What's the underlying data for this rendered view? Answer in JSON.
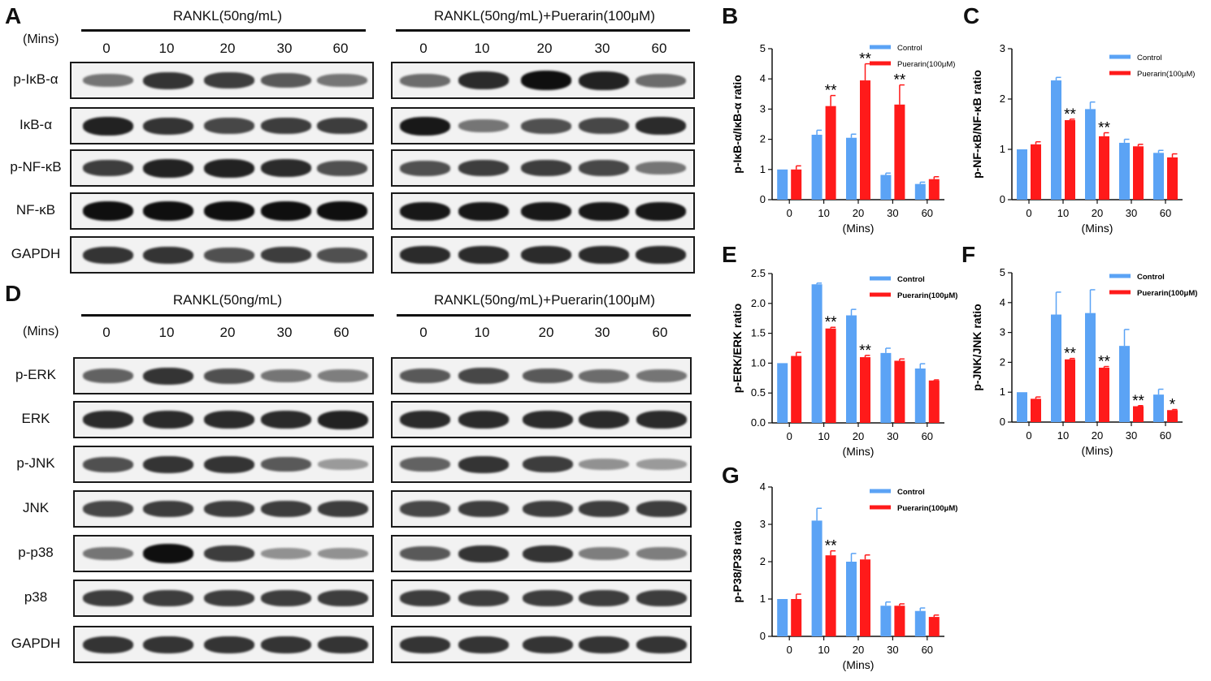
{
  "panels": {
    "A": "A",
    "B": "B",
    "C": "C",
    "D": "D",
    "E": "E",
    "F": "F",
    "G": "G"
  },
  "blots": {
    "conditions": [
      "RANKL(50ng/mL)",
      "RANKL(50ng/mL)+Puerarin(100μM)"
    ],
    "mins_label": "(Mins)",
    "lanes": [
      "0",
      "10",
      "20",
      "30",
      "60"
    ],
    "block_A": {
      "rows": [
        "p-IκB-α",
        "IκB-α",
        "p-NF-κB",
        "NF-κB",
        "GAPDH"
      ],
      "intensity_left": [
        [
          0.45,
          0.8,
          0.75,
          0.6,
          0.45
        ],
        [
          0.9,
          0.8,
          0.7,
          0.75,
          0.75
        ],
        [
          0.75,
          0.9,
          0.9,
          0.85,
          0.65
        ],
        [
          1,
          1,
          1,
          1,
          1
        ],
        [
          0.8,
          0.8,
          0.65,
          0.75,
          0.65
        ]
      ],
      "intensity_right": [
        [
          0.5,
          0.85,
          1,
          0.9,
          0.5
        ],
        [
          0.95,
          0.45,
          0.65,
          0.7,
          0.85
        ],
        [
          0.65,
          0.75,
          0.75,
          0.7,
          0.45
        ],
        [
          0.95,
          0.95,
          0.95,
          0.95,
          0.95
        ],
        [
          0.85,
          0.85,
          0.85,
          0.85,
          0.85
        ]
      ]
    },
    "block_D": {
      "rows": [
        "p-ERK",
        "ERK",
        "p-JNK",
        "JNK",
        "p-p38",
        "p38",
        "GAPDH"
      ],
      "intensity_left": [
        [
          0.55,
          0.8,
          0.65,
          0.45,
          0.4
        ],
        [
          0.85,
          0.85,
          0.85,
          0.85,
          0.9
        ],
        [
          0.65,
          0.8,
          0.8,
          0.6,
          0.25
        ],
        [
          0.7,
          0.75,
          0.75,
          0.75,
          0.75
        ],
        [
          0.45,
          1,
          0.75,
          0.3,
          0.3
        ],
        [
          0.75,
          0.75,
          0.75,
          0.75,
          0.75
        ],
        [
          0.8,
          0.8,
          0.8,
          0.8,
          0.8
        ]
      ],
      "intensity_right": [
        [
          0.6,
          0.7,
          0.6,
          0.5,
          0.45
        ],
        [
          0.85,
          0.85,
          0.85,
          0.85,
          0.85
        ],
        [
          0.55,
          0.8,
          0.75,
          0.3,
          0.25
        ],
        [
          0.7,
          0.75,
          0.75,
          0.75,
          0.75
        ],
        [
          0.6,
          0.8,
          0.8,
          0.4,
          0.4
        ],
        [
          0.75,
          0.75,
          0.75,
          0.75,
          0.75
        ],
        [
          0.8,
          0.8,
          0.8,
          0.8,
          0.8
        ]
      ]
    }
  },
  "colors": {
    "control": "#5ba3f5",
    "puerarin": "#ff1a1a"
  },
  "chart_data": [
    {
      "id": "B",
      "type": "bar",
      "categories": [
        "0",
        "10",
        "20",
        "30",
        "60"
      ],
      "series": [
        {
          "name": "Control",
          "values": [
            1.0,
            2.15,
            2.05,
            0.82,
            0.52
          ],
          "errors": [
            0.0,
            0.15,
            0.12,
            0.06,
            0.06
          ]
        },
        {
          "name": "Puerarin(100μM)",
          "values": [
            1.0,
            3.1,
            3.95,
            3.15,
            0.68
          ],
          "errors": [
            0.12,
            0.35,
            0.55,
            0.65,
            0.08
          ]
        }
      ],
      "significance": [
        "",
        "**",
        "**",
        "**",
        ""
      ],
      "xlabel": "(Mins)",
      "ylabel": "p-IκB-α/IκB-α ratio",
      "ylim": [
        0,
        5
      ],
      "yticks": [
        "0",
        "1",
        "2",
        "3",
        "4",
        "5"
      ],
      "grid": false,
      "legend": "top-right"
    },
    {
      "id": "C",
      "type": "bar",
      "categories": [
        "0",
        "10",
        "20",
        "30",
        "60"
      ],
      "series": [
        {
          "name": "Control",
          "values": [
            1.0,
            2.37,
            1.8,
            1.13,
            0.93
          ],
          "errors": [
            0.0,
            0.06,
            0.14,
            0.07,
            0.05
          ]
        },
        {
          "name": "Puerarin(100μM)",
          "values": [
            1.1,
            1.58,
            1.26,
            1.06,
            0.84
          ],
          "errors": [
            0.05,
            0.02,
            0.07,
            0.04,
            0.07
          ]
        }
      ],
      "significance": [
        "",
        "**",
        "**",
        "",
        ""
      ],
      "xlabel": "(Mins)",
      "ylabel": "p-NF-κB/NF-κB ratio",
      "ylim": [
        0,
        3
      ],
      "yticks": [
        "0",
        "1",
        "2",
        "3"
      ],
      "grid": false,
      "legend": "top-right"
    },
    {
      "id": "E",
      "type": "bar",
      "categories": [
        "0",
        "10",
        "20",
        "30",
        "60"
      ],
      "series": [
        {
          "name": "Control",
          "values": [
            1.0,
            2.32,
            1.8,
            1.17,
            0.91
          ],
          "errors": [
            0.0,
            0.02,
            0.1,
            0.08,
            0.08
          ]
        },
        {
          "name": "Puerarin(100μM)",
          "values": [
            1.12,
            1.58,
            1.1,
            1.04,
            0.71
          ],
          "errors": [
            0.06,
            0.02,
            0.03,
            0.03,
            0.01
          ]
        }
      ],
      "significance": [
        "",
        "**",
        "**",
        "",
        ""
      ],
      "xlabel": "(Mins)",
      "ylabel": "p-ERK/ERK ratio",
      "ylim": [
        0,
        2.5
      ],
      "yticks": [
        "0.0",
        "0.5",
        "1.0",
        "1.5",
        "2.0",
        "2.5"
      ],
      "grid": false,
      "legend": "top-right"
    },
    {
      "id": "F",
      "type": "bar",
      "categories": [
        "0",
        "10",
        "20",
        "30",
        "60"
      ],
      "series": [
        {
          "name": "Control",
          "values": [
            1.0,
            3.6,
            3.65,
            2.55,
            0.92
          ],
          "errors": [
            0.0,
            0.75,
            0.78,
            0.55,
            0.18
          ]
        },
        {
          "name": "Puerarin(100μM)",
          "values": [
            0.78,
            2.1,
            1.82,
            0.53,
            0.4
          ],
          "errors": [
            0.06,
            0.03,
            0.04,
            0.02,
            0.02
          ]
        }
      ],
      "significance": [
        "",
        "**",
        "**",
        "**",
        "*"
      ],
      "xlabel": "(Mins)",
      "ylabel": "p-JNK/JNK ratio",
      "ylim": [
        0,
        5
      ],
      "yticks": [
        "0",
        "1",
        "2",
        "3",
        "4",
        "5"
      ],
      "grid": false,
      "legend": "top-right"
    },
    {
      "id": "G",
      "type": "bar",
      "categories": [
        "0",
        "10",
        "20",
        "30",
        "60"
      ],
      "series": [
        {
          "name": "Control",
          "values": [
            1.0,
            3.1,
            2.0,
            0.82,
            0.68
          ],
          "errors": [
            0.0,
            0.33,
            0.22,
            0.1,
            0.08
          ]
        },
        {
          "name": "Puerarin(100μM)",
          "values": [
            1.0,
            2.17,
            2.06,
            0.82,
            0.52
          ],
          "errors": [
            0.13,
            0.12,
            0.12,
            0.05,
            0.05
          ]
        }
      ],
      "significance": [
        "",
        "**",
        "",
        "",
        ""
      ],
      "xlabel": "(Mins)",
      "ylabel": "p-P38/P38 ratio",
      "ylim": [
        0,
        4
      ],
      "yticks": [
        "0",
        "1",
        "2",
        "3",
        "4"
      ],
      "grid": false,
      "legend": "top-right"
    }
  ]
}
